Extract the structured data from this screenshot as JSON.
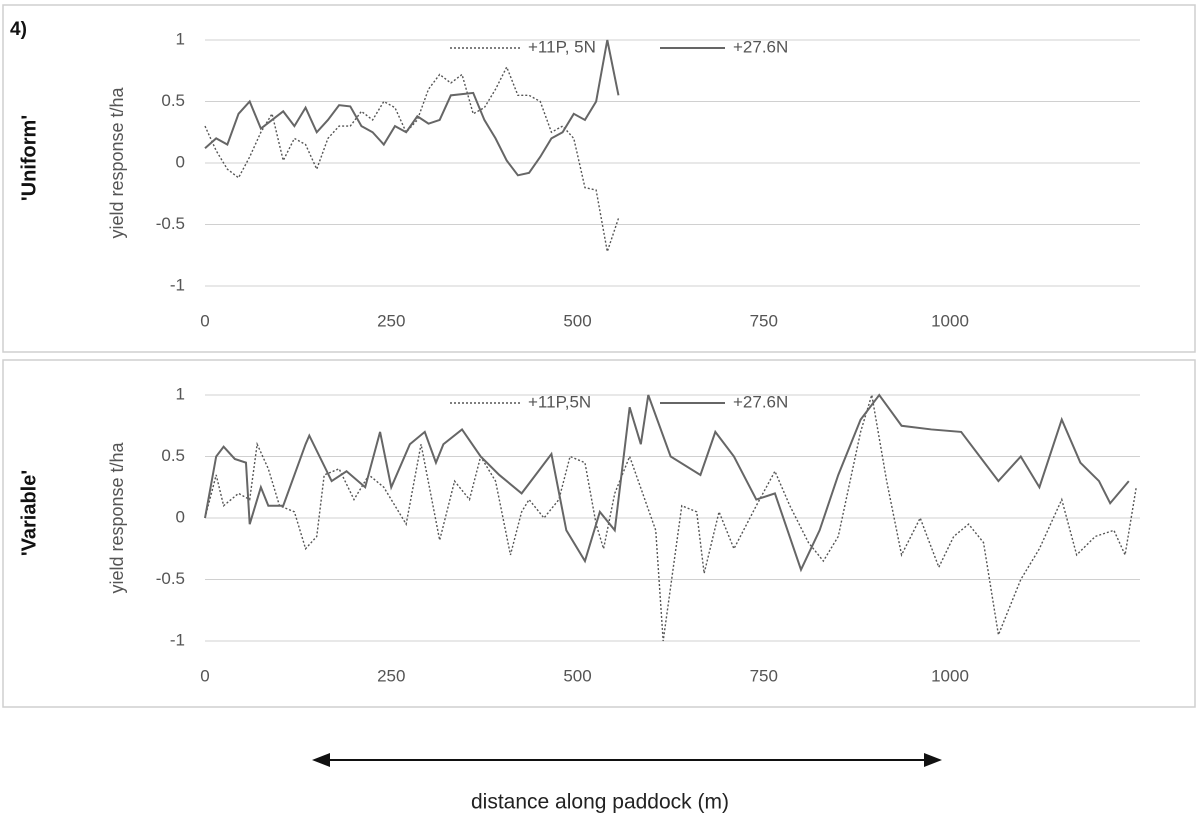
{
  "figure_label": "4)",
  "caption": "distance along paddock (m)",
  "chart_data": [
    {
      "type": "line",
      "panel_label": "'Uniform'",
      "ylabel": "yield response t/ha",
      "xlim": [
        0,
        1255
      ],
      "xticks": [
        0,
        250,
        500,
        750,
        1000
      ],
      "ylim": [
        -1,
        1
      ],
      "yticks": [
        -1,
        -0.5,
        0,
        0.5,
        1
      ],
      "grid": true,
      "series": [
        {
          "name": "+11P, 5N",
          "color": "#555555",
          "style": "dotted",
          "x": [
            0,
            15,
            30,
            45,
            60,
            75,
            90,
            105,
            120,
            135,
            150,
            165,
            180,
            195,
            210,
            225,
            240,
            255,
            270,
            285,
            300,
            315,
            330,
            345,
            360,
            375,
            390,
            405,
            420,
            435,
            450,
            465,
            480,
            495,
            510,
            525,
            540,
            555
          ],
          "values": [
            0.3,
            0.1,
            -0.05,
            -0.12,
            0.05,
            0.25,
            0.4,
            0.02,
            0.2,
            0.15,
            -0.05,
            0.2,
            0.3,
            0.3,
            0.42,
            0.35,
            0.5,
            0.45,
            0.25,
            0.35,
            0.6,
            0.72,
            0.65,
            0.72,
            0.4,
            0.45,
            0.6,
            0.78,
            0.55,
            0.55,
            0.5,
            0.25,
            0.3,
            0.2,
            -0.2,
            -0.22,
            -0.72,
            -0.45
          ]
        },
        {
          "name": "+27.6N",
          "color": "#666666",
          "style": "solid",
          "x": [
            0,
            15,
            30,
            45,
            60,
            75,
            90,
            105,
            120,
            135,
            150,
            165,
            180,
            195,
            210,
            225,
            240,
            255,
            270,
            285,
            300,
            315,
            330,
            345,
            360,
            375,
            390,
            405,
            420,
            435,
            450,
            465,
            480,
            495,
            510,
            525,
            540,
            555
          ],
          "values": [
            0.12,
            0.2,
            0.15,
            0.4,
            0.5,
            0.28,
            0.35,
            0.42,
            0.3,
            0.45,
            0.25,
            0.35,
            0.47,
            0.46,
            0.3,
            0.25,
            0.15,
            0.3,
            0.25,
            0.38,
            0.32,
            0.35,
            0.55,
            0.56,
            0.57,
            0.35,
            0.2,
            0.02,
            -0.1,
            -0.08,
            0.05,
            0.2,
            0.25,
            0.4,
            0.35,
            0.5,
            1.0,
            0.55
          ]
        }
      ]
    },
    {
      "type": "line",
      "panel_label": "'Variable'",
      "ylabel": "yield response t/ha",
      "xlim": [
        0,
        1255
      ],
      "xticks": [
        0,
        250,
        500,
        750,
        1000
      ],
      "ylim": [
        -1,
        1
      ],
      "yticks": [
        -1,
        -0.5,
        0,
        0.5,
        1
      ],
      "grid": true,
      "series": [
        {
          "name": "+11P,5N",
          "color": "#555555",
          "style": "dotted",
          "x": [
            0,
            15,
            25,
            45,
            60,
            70,
            85,
            100,
            120,
            135,
            150,
            160,
            180,
            200,
            220,
            240,
            255,
            270,
            290,
            315,
            335,
            355,
            370,
            390,
            410,
            425,
            435,
            455,
            475,
            490,
            510,
            525,
            535,
            550,
            570,
            605,
            615,
            640,
            660,
            670,
            690,
            710,
            740,
            765,
            785,
            810,
            830,
            850,
            880,
            895,
            915,
            935,
            960,
            985,
            1005,
            1025,
            1045,
            1065,
            1095,
            1120,
            1150,
            1170,
            1195,
            1220,
            1235,
            1250
          ],
          "values": [
            0,
            0.35,
            0.1,
            0.2,
            0.15,
            0.6,
            0.4,
            0.1,
            0.05,
            -0.25,
            -0.15,
            0.35,
            0.4,
            0.15,
            0.35,
            0.25,
            0.1,
            -0.05,
            0.6,
            -0.18,
            0.3,
            0.15,
            0.5,
            0.3,
            -0.3,
            0.05,
            0.15,
            0,
            0.15,
            0.5,
            0.45,
            -0.05,
            -0.25,
            0.2,
            0.5,
            -0.1,
            -1,
            0.1,
            0.05,
            -0.45,
            0.05,
            -0.25,
            0.1,
            0.38,
            0.1,
            -0.2,
            -0.35,
            -0.15,
            0.7,
            1,
            0.3,
            -0.3,
            0,
            -0.4,
            -0.15,
            -0.05,
            -0.2,
            -0.95,
            -0.5,
            -0.25,
            0.15,
            -0.3,
            -0.15,
            -0.1,
            -0.3,
            0.25
          ]
        },
        {
          "name": "+27.6N",
          "color": "#666666",
          "style": "solid",
          "x": [
            0,
            15,
            25,
            40,
            55,
            60,
            75,
            85,
            105,
            135,
            140,
            170,
            190,
            215,
            235,
            250,
            275,
            295,
            310,
            320,
            345,
            370,
            395,
            425,
            465,
            485,
            510,
            530,
            550,
            570,
            585,
            595,
            625,
            665,
            685,
            710,
            740,
            765,
            800,
            825,
            850,
            880,
            905,
            935,
            975,
            1015,
            1040,
            1065,
            1095,
            1120,
            1150,
            1175,
            1200,
            1215,
            1240
          ],
          "values": [
            0,
            0.5,
            0.58,
            0.48,
            0.45,
            -0.05,
            0.25,
            0.1,
            0.1,
            0.6,
            0.67,
            0.3,
            0.38,
            0.25,
            0.7,
            0.25,
            0.6,
            0.7,
            0.45,
            0.6,
            0.72,
            0.5,
            0.35,
            0.2,
            0.52,
            -0.1,
            -0.35,
            0.05,
            -0.1,
            0.9,
            0.6,
            1.0,
            0.5,
            0.35,
            0.7,
            0.5,
            0.15,
            0.2,
            -0.42,
            -0.1,
            0.35,
            0.8,
            1.0,
            0.75,
            0.72,
            0.7,
            0.5,
            0.3,
            0.5,
            0.25,
            0.8,
            0.45,
            0.3,
            0.12,
            0.3
          ]
        }
      ]
    }
  ]
}
